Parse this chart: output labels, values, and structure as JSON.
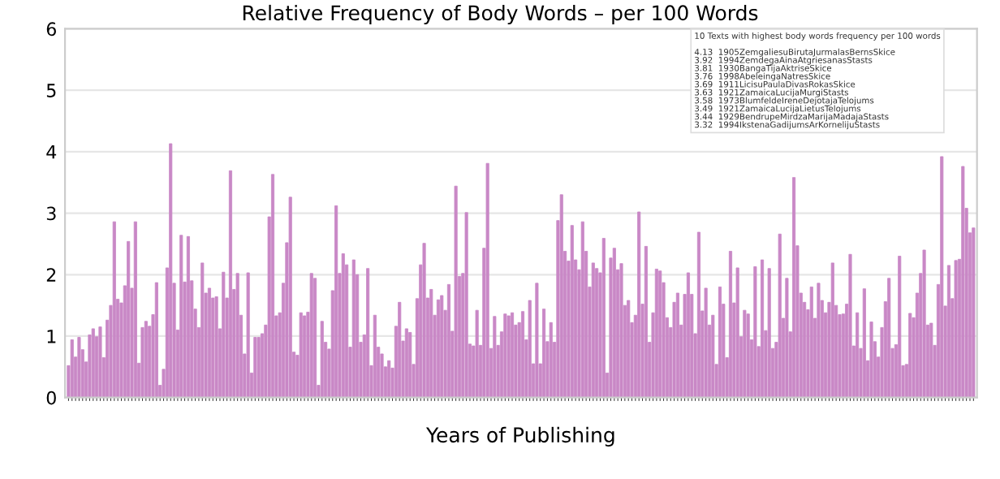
{
  "chart_data": {
    "type": "bar",
    "title": "Relative Frequency of Body Words – per 100 Words",
    "xlabel": "Years of Publishing",
    "color": "#c988c6",
    "ylim": [
      0,
      6
    ],
    "yticks": [
      0,
      1,
      2,
      3,
      4,
      5,
      6
    ],
    "grid": "y",
    "annotations": [
      "10 Texts with highest body words frequency per 100 words",
      "4.13  1905ZemgaliesuBirutaJurmalasBernsSkice",
      "3.92  1994ZemdegaAinaAtgriesanasStasts",
      "3.81  1930BangaTijaAktriseSkice",
      "3.76  1998AbeleingaNatresSkice",
      "3.69  1911LicisuPaulaDivasRokasSkice",
      "3.63  1921ZamaicaLucijaMurgiStasts",
      "3.58  1973BlumfeldeIreneDejotajaTelojums",
      "3.49  1921ZamaicaLucijaLietusTelojums",
      "3.44  1929BendrupeMirdzaMarijaMadajaStasts",
      "3.32  1994IkstenaGadijumsArKornelijuStasts"
    ],
    "values": [
      0.52,
      0.94,
      0.66,
      0.98,
      0.78,
      0.58,
      1.02,
      1.12,
      0.99,
      1.15,
      0.65,
      1.26,
      1.5,
      2.86,
      1.6,
      1.54,
      1.82,
      2.54,
      1.78,
      2.86,
      0.56,
      1.14,
      1.24,
      1.16,
      1.35,
      1.87,
      0.2,
      0.46,
      2.11,
      4.13,
      1.86,
      1.1,
      2.64,
      1.88,
      2.62,
      1.9,
      1.44,
      1.14,
      2.19,
      1.7,
      1.78,
      1.62,
      1.64,
      1.12,
      2.04,
      1.62,
      3.69,
      1.76,
      2.02,
      1.34,
      0.71,
      2.03,
      0.4,
      0.98,
      0.98,
      1.04,
      1.18,
      2.94,
      3.63,
      1.33,
      1.38,
      1.86,
      2.52,
      3.26,
      0.74,
      0.69,
      1.38,
      1.33,
      1.39,
      2.02,
      1.94,
      0.2,
      1.24,
      0.9,
      0.79,
      1.74,
      3.12,
      2.02,
      2.34,
      2.16,
      0.82,
      2.24,
      2.0,
      0.9,
      1.02,
      2.1,
      0.52,
      1.34,
      0.82,
      0.71,
      0.5,
      0.6,
      0.48,
      1.16,
      1.55,
      0.92,
      1.12,
      1.06,
      0.54,
      1.61,
      2.16,
      2.51,
      1.62,
      1.76,
      1.34,
      1.59,
      1.66,
      1.42,
      1.84,
      1.08,
      3.44,
      1.97,
      2.02,
      3.01,
      0.87,
      0.84,
      1.42,
      0.85,
      2.43,
      3.81,
      0.8,
      1.32,
      0.85,
      1.07,
      1.36,
      1.33,
      1.38,
      1.18,
      1.22,
      1.4,
      0.94,
      1.58,
      0.55,
      1.86,
      0.55,
      1.44,
      0.91,
      1.22,
      0.9,
      2.88,
      3.3,
      2.38,
      2.22,
      2.8,
      2.24,
      2.08,
      2.86,
      2.38,
      1.8,
      2.19,
      2.1,
      2.03,
      2.59,
      0.4,
      2.27,
      2.43,
      2.08,
      2.18,
      1.5,
      1.58,
      1.22,
      1.34,
      3.02,
      1.52,
      2.46,
      0.9,
      1.38,
      2.09,
      2.06,
      1.87,
      1.3,
      1.14,
      1.55,
      1.7,
      1.18,
      1.68,
      2.03,
      1.68,
      1.04,
      2.69,
      1.41,
      1.78,
      1.18,
      1.34,
      0.54,
      1.8,
      1.52,
      0.65,
      2.38,
      1.54,
      2.11,
      0.99,
      1.42,
      1.36,
      0.94,
      2.13,
      0.83,
      2.24,
      1.09,
      2.1,
      0.8,
      0.9,
      2.66,
      1.29,
      1.94,
      1.07,
      3.58,
      2.47,
      1.7,
      1.55,
      1.43,
      1.8,
      1.29,
      1.86,
      1.58,
      1.38,
      1.55,
      2.19,
      1.5,
      1.35,
      1.36,
      1.52,
      2.33,
      0.84,
      1.38,
      0.8,
      1.77,
      0.6,
      1.23,
      0.91,
      0.66,
      1.14,
      1.56,
      1.94,
      0.8,
      0.86,
      2.3,
      0.52,
      0.54,
      1.37,
      1.3,
      1.7,
      2.02,
      2.4,
      1.18,
      1.21,
      0.85,
      1.84,
      3.92,
      1.49,
      2.15,
      1.61,
      2.23,
      2.25,
      3.76,
      3.08,
      2.68,
      2.76
    ]
  }
}
